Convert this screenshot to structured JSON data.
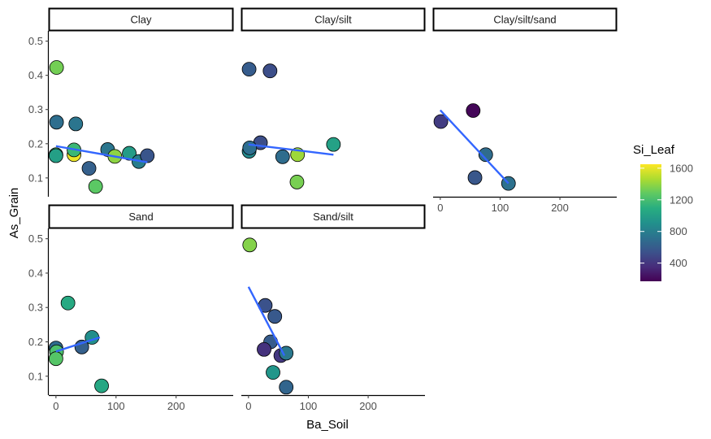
{
  "chart_data": {
    "type": "scatter",
    "xlabel": "Ba_Soil",
    "ylabel": "As_Grain",
    "xlim": [
      -12,
      295
    ],
    "ylim": [
      0.045,
      0.53
    ],
    "x_ticks": [
      0,
      100,
      200
    ],
    "x_tick_labels": [
      "0",
      "100",
      "200"
    ],
    "y_ticks": [
      0.1,
      0.2,
      0.3,
      0.4,
      0.5
    ],
    "y_tick_labels": [
      "0.1",
      "0.2",
      "0.3",
      "0.4",
      "0.5"
    ],
    "grid": false,
    "color_variable": "Si_Leaf",
    "colorbar": {
      "title": "Si_Leaf",
      "min": 170,
      "max": 1650,
      "ticks": [
        400,
        800,
        1200,
        1600
      ],
      "tick_labels": [
        "400",
        "800",
        "1200",
        "1600"
      ],
      "palette": "viridis",
      "colors": [
        "#440154",
        "#472d7b",
        "#3b528b",
        "#2c728e",
        "#21918c",
        "#28ae80",
        "#5ec962",
        "#addc30",
        "#fde725"
      ]
    },
    "fit_line_color": "#3366FF",
    "legend_position": "right",
    "panels": [
      {
        "label": "Clay",
        "points": [
          {
            "x": 1,
            "y": 0.423,
            "c": 1330
          },
          {
            "x": 1,
            "y": 0.263,
            "c": 700
          },
          {
            "x": 33,
            "y": 0.258,
            "c": 740
          },
          {
            "x": 0,
            "y": 0.168,
            "c": 1170
          },
          {
            "x": 0,
            "y": 0.165,
            "c": 1000
          },
          {
            "x": 30,
            "y": 0.168,
            "c": 1610
          },
          {
            "x": 30,
            "y": 0.182,
            "c": 1160
          },
          {
            "x": 55,
            "y": 0.128,
            "c": 620
          },
          {
            "x": 66,
            "y": 0.075,
            "c": 1270
          },
          {
            "x": 86,
            "y": 0.183,
            "c": 750
          },
          {
            "x": 98,
            "y": 0.163,
            "c": 1390
          },
          {
            "x": 122,
            "y": 0.172,
            "c": 980
          },
          {
            "x": 138,
            "y": 0.148,
            "c": 790
          },
          {
            "x": 152,
            "y": 0.165,
            "c": 560
          }
        ],
        "fit": {
          "x": [
            0,
            152
          ],
          "y": [
            0.193,
            0.146
          ]
        }
      },
      {
        "label": "Clay/silt",
        "points": [
          {
            "x": 1,
            "y": 0.418,
            "c": 600
          },
          {
            "x": 36,
            "y": 0.413,
            "c": 520
          },
          {
            "x": 20,
            "y": 0.203,
            "c": 520
          },
          {
            "x": 1,
            "y": 0.178,
            "c": 860
          },
          {
            "x": 2,
            "y": 0.188,
            "c": 700
          },
          {
            "x": 57,
            "y": 0.162,
            "c": 690
          },
          {
            "x": 82,
            "y": 0.168,
            "c": 1430
          },
          {
            "x": 81,
            "y": 0.088,
            "c": 1340
          },
          {
            "x": 142,
            "y": 0.198,
            "c": 1010
          }
        ],
        "fit": {
          "x": [
            0,
            142
          ],
          "y": [
            0.198,
            0.168
          ]
        }
      },
      {
        "label": "Clay/silt/sand",
        "points": [
          {
            "x": 1,
            "y": 0.265,
            "c": 430
          },
          {
            "x": 55,
            "y": 0.297,
            "c": 190
          },
          {
            "x": 76,
            "y": 0.168,
            "c": 690
          },
          {
            "x": 58,
            "y": 0.101,
            "c": 570
          },
          {
            "x": 114,
            "y": 0.084,
            "c": 720
          }
        ],
        "fit": {
          "x": [
            0,
            114
          ],
          "y": [
            0.298,
            0.084
          ]
        }
      },
      {
        "label": "Sand",
        "points": [
          {
            "x": 20,
            "y": 0.313,
            "c": 1060
          },
          {
            "x": 0,
            "y": 0.182,
            "c": 690
          },
          {
            "x": 1,
            "y": 0.171,
            "c": 1220
          },
          {
            "x": 0,
            "y": 0.151,
            "c": 1250
          },
          {
            "x": 43,
            "y": 0.185,
            "c": 620
          },
          {
            "x": 60,
            "y": 0.213,
            "c": 890
          },
          {
            "x": 76,
            "y": 0.072,
            "c": 1050
          }
        ],
        "fit": {
          "x": [
            0,
            73
          ],
          "y": [
            0.172,
            0.213
          ]
        }
      },
      {
        "label": "Sand/silt",
        "points": [
          {
            "x": 2,
            "y": 0.482,
            "c": 1370
          },
          {
            "x": 28,
            "y": 0.306,
            "c": 540
          },
          {
            "x": 44,
            "y": 0.274,
            "c": 580
          },
          {
            "x": 37,
            "y": 0.2,
            "c": 600
          },
          {
            "x": 26,
            "y": 0.178,
            "c": 380
          },
          {
            "x": 54,
            "y": 0.16,
            "c": 410
          },
          {
            "x": 63,
            "y": 0.167,
            "c": 760
          },
          {
            "x": 41,
            "y": 0.111,
            "c": 940
          },
          {
            "x": 63,
            "y": 0.068,
            "c": 650
          }
        ],
        "fit": {
          "x": [
            0,
            60
          ],
          "y": [
            0.36,
            0.16
          ]
        }
      }
    ]
  }
}
